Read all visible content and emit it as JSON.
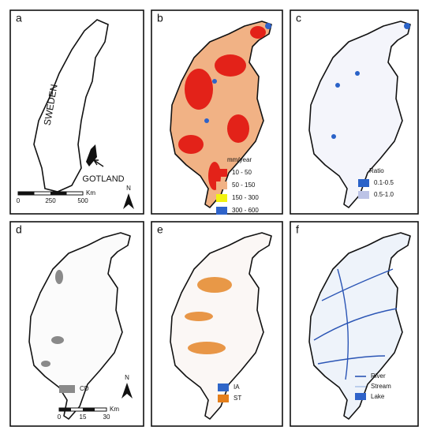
{
  "panels": [
    {
      "letter": "a",
      "labels": [
        "SWEDEN",
        "GOTLAND"
      ],
      "north": "N",
      "scale": {
        "unit": "Km",
        "ticks": [
          "0",
          "250",
          "500"
        ]
      }
    },
    {
      "letter": "b",
      "legend": {
        "title": "mm/year",
        "items": [
          {
            "label": "10 - 50",
            "color": "#e32219"
          },
          {
            "label": "50 - 150",
            "color": "#f1b285"
          },
          {
            "label": "150 - 300",
            "color": "#f2f20f"
          },
          {
            "label": "300 - 600",
            "color": "#2f63c9"
          }
        ]
      }
    },
    {
      "letter": "c",
      "legend": {
        "title": "Ratio",
        "items": [
          {
            "label": "0.1-0.5",
            "color": "#2a62c8"
          },
          {
            "label": "0.5-1.0",
            "color": "#bcc3e6"
          }
        ]
      }
    },
    {
      "letter": "d",
      "legend": {
        "items": [
          {
            "label": "CD",
            "color": "#8a8a8a"
          }
        ]
      },
      "north": "N",
      "scale": {
        "unit": "Km",
        "ticks": [
          "0",
          "15",
          "30"
        ]
      }
    },
    {
      "letter": "e",
      "legend": {
        "items": [
          {
            "label": "IA",
            "color": "#2f66c8"
          },
          {
            "label": "ST",
            "color": "#e47f1c"
          }
        ]
      }
    },
    {
      "letter": "f",
      "legend": {
        "items": [
          {
            "label": "River"
          },
          {
            "label": "Stream"
          },
          {
            "label": "Lake"
          }
        ]
      }
    }
  ]
}
